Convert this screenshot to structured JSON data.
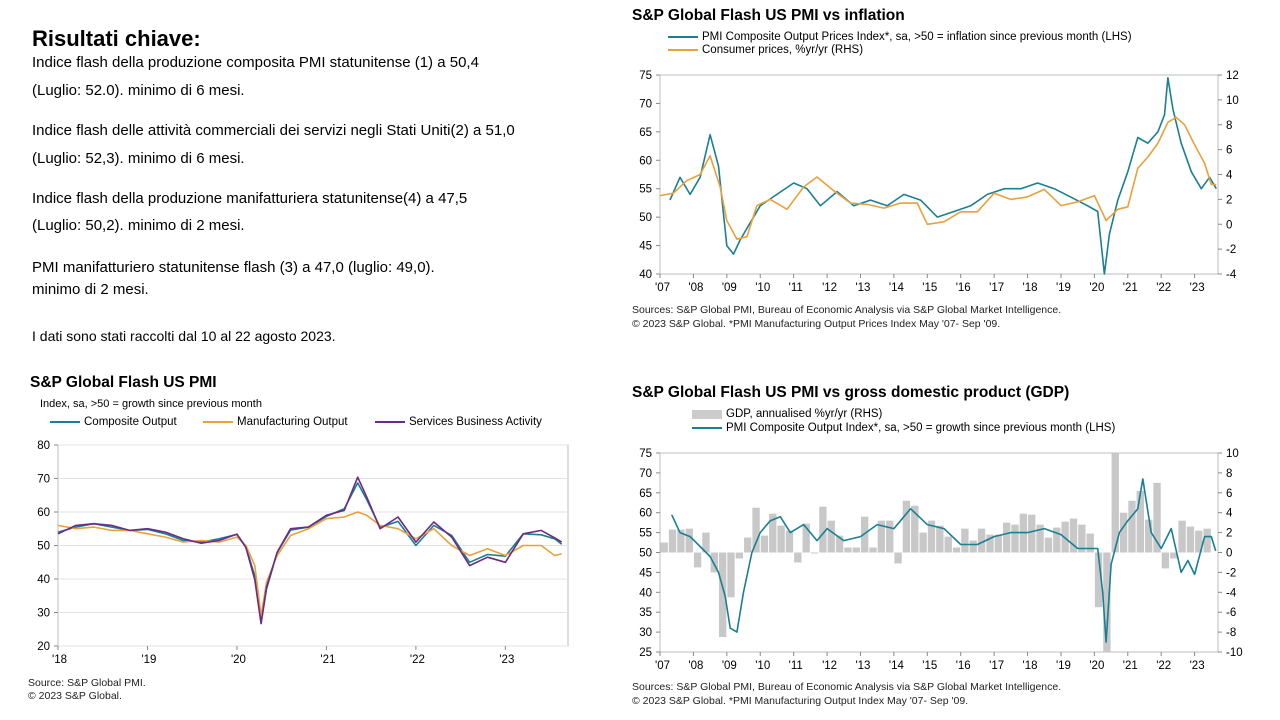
{
  "findings": {
    "title": "Risultati chiave:",
    "lines": [
      "Indice flash della produzione composita PMI statunitense (1) a 50,4",
      "(Luglio: 52.0). minimo di 6 mesi.",
      "Indice flash delle attività commerciali dei servizi negli Stati Uniti(2) a 51,0",
      "(Luglio: 52,3). minimo di 6 mesi.",
      "Indice flash della produzione manifatturiera statunitense(4) a 47,5",
      "(Luglio: 50,2). minimo di 2 mesi.",
      "PMI manifatturiero statunitense flash (3) a 47,0 (luglio: 49,0).",
      "minimo di 2 mesi.",
      "I dati sono stati raccolti dal 10 al 22 agosto 2023."
    ]
  },
  "colors": {
    "composite": "#1a7f95",
    "manufacturing": "#e9a13b",
    "services": "#6b2a86",
    "gdp": "#c8c8c8",
    "inflation": "#e9a13b",
    "prices": "#1a7f95"
  },
  "chart_data": [
    {
      "id": "pmi",
      "type": "line",
      "title": "S&P Global Flash US PMI",
      "ylabel": "Index, sa, >50 = growth  since previous month",
      "ylim": [
        20,
        80
      ],
      "yticks": [
        "20",
        "30",
        "40",
        "50",
        "60",
        "70",
        "80"
      ],
      "xlim": [
        2018.0,
        2023.7
      ],
      "xticks": [
        {
          "v": 2018,
          "l": "'18"
        },
        {
          "v": 2019,
          "l": "'19"
        },
        {
          "v": 2020,
          "l": "'20"
        },
        {
          "v": 2021,
          "l": "'21"
        },
        {
          "v": 2022,
          "l": "'22"
        },
        {
          "v": 2023,
          "l": "'23"
        }
      ],
      "series": [
        {
          "name": "Composite Output",
          "color_key": "composite",
          "x": [
            2018.0,
            2018.2,
            2018.4,
            2018.6,
            2018.8,
            2019.0,
            2019.2,
            2019.4,
            2019.6,
            2019.8,
            2020.0,
            2020.1,
            2020.2,
            2020.27,
            2020.33,
            2020.45,
            2020.6,
            2020.8,
            2021.0,
            2021.2,
            2021.35,
            2021.45,
            2021.6,
            2021.8,
            2022.0,
            2022.2,
            2022.4,
            2022.6,
            2022.8,
            2023.0,
            2023.2,
            2023.4,
            2023.55,
            2023.63
          ],
          "y": [
            54,
            55.5,
            56.5,
            55.5,
            54.5,
            54.8,
            53.5,
            51.5,
            51,
            52,
            53.3,
            49.6,
            40.9,
            27.0,
            37,
            47.9,
            54.6,
            55.5,
            58.7,
            61,
            68.7,
            63.7,
            55.4,
            57.2,
            50,
            56,
            53,
            45,
            47.3,
            46.8,
            53.5,
            53.2,
            52,
            50.4
          ]
        },
        {
          "name": "Manufacturing Output",
          "color_key": "manufacturing",
          "x": [
            2018.0,
            2018.2,
            2018.4,
            2018.6,
            2018.8,
            2019.0,
            2019.2,
            2019.4,
            2019.6,
            2019.8,
            2020.0,
            2020.1,
            2020.2,
            2020.27,
            2020.33,
            2020.45,
            2020.6,
            2020.8,
            2021.0,
            2021.2,
            2021.35,
            2021.45,
            2021.6,
            2021.8,
            2022.0,
            2022.2,
            2022.4,
            2022.6,
            2022.8,
            2023.0,
            2023.2,
            2023.4,
            2023.55,
            2023.63
          ],
          "y": [
            56,
            55,
            55.5,
            54.5,
            54.5,
            53.5,
            52.5,
            51,
            51.5,
            51,
            52.5,
            50,
            44,
            29,
            39,
            47,
            53,
            55,
            58,
            58.5,
            60,
            59,
            56,
            55,
            52,
            55,
            50,
            47,
            49,
            47,
            50,
            50,
            47,
            47.5
          ]
        },
        {
          "name": "Services Business Activity",
          "color_key": "services",
          "x": [
            2018.0,
            2018.2,
            2018.4,
            2018.6,
            2018.8,
            2019.0,
            2019.2,
            2019.4,
            2019.6,
            2019.8,
            2020.0,
            2020.1,
            2020.2,
            2020.27,
            2020.33,
            2020.45,
            2020.6,
            2020.8,
            2021.0,
            2021.2,
            2021.35,
            2021.45,
            2021.6,
            2021.8,
            2022.0,
            2022.2,
            2022.4,
            2022.6,
            2022.8,
            2023.0,
            2023.2,
            2023.4,
            2023.55,
            2023.63
          ],
          "y": [
            53.5,
            56,
            56.5,
            56,
            54.5,
            55,
            54,
            52,
            50.7,
            51.5,
            53.4,
            49.4,
            39.8,
            26.7,
            37.5,
            48,
            55,
            55.5,
            59,
            60.5,
            70.4,
            64.5,
            55,
            58.5,
            51,
            57,
            52.5,
            44,
            46.5,
            45,
            53.5,
            54.5,
            52.3,
            51
          ]
        }
      ],
      "source": [
        "Source: S&P Global PMI.",
        "© 2023 S&P Global."
      ]
    },
    {
      "id": "inflation",
      "type": "line",
      "title": "S&P Global Flash US PMI vs inflation",
      "ylim": [
        40,
        75
      ],
      "yticks": [
        "40",
        "45",
        "50",
        "55",
        "60",
        "65",
        "70",
        "75"
      ],
      "y2lim": [
        -4,
        12
      ],
      "y2ticks": [
        "-4",
        "-2",
        "0",
        "2",
        "4",
        "6",
        "8",
        "10",
        "12"
      ],
      "xlim": [
        2007.0,
        2023.7
      ],
      "xticks": [
        {
          "v": 2007,
          "l": "'07"
        },
        {
          "v": 2008,
          "l": "'08"
        },
        {
          "v": 2009,
          "l": "'09"
        },
        {
          "v": 2010,
          "l": "'10"
        },
        {
          "v": 2011,
          "l": "'11"
        },
        {
          "v": 2012,
          "l": "'12"
        },
        {
          "v": 2013,
          "l": "'13"
        },
        {
          "v": 2014,
          "l": "'14"
        },
        {
          "v": 2015,
          "l": "'15"
        },
        {
          "v": 2016,
          "l": "'16"
        },
        {
          "v": 2017,
          "l": "'17"
        },
        {
          "v": 2018,
          "l": "'18"
        },
        {
          "v": 2019,
          "l": "'19"
        },
        {
          "v": 2020,
          "l": "'20"
        },
        {
          "v": 2021,
          "l": "'21"
        },
        {
          "v": 2022,
          "l": "'22"
        },
        {
          "v": 2023,
          "l": "'23"
        }
      ],
      "series": [
        {
          "name": "PMI Composite Output Prices Index*, sa, >50 = inflation since previous month (LHS)",
          "color_key": "prices",
          "axis": "left",
          "x": [
            2007.3,
            2007.6,
            2007.9,
            2008.2,
            2008.5,
            2008.75,
            2009.0,
            2009.2,
            2009.4,
            2009.7,
            2010.0,
            2010.5,
            2011.0,
            2011.4,
            2011.8,
            2012.3,
            2012.8,
            2013.3,
            2013.8,
            2014.3,
            2014.8,
            2015.3,
            2015.8,
            2016.3,
            2016.8,
            2017.3,
            2017.8,
            2018.3,
            2018.8,
            2019.3,
            2019.8,
            2020.1,
            2020.3,
            2020.45,
            2020.7,
            2021.0,
            2021.3,
            2021.6,
            2021.9,
            2022.1,
            2022.2,
            2022.35,
            2022.6,
            2022.9,
            2023.2,
            2023.45,
            2023.65
          ],
          "y": [
            53,
            57,
            54,
            57,
            64.5,
            59,
            45,
            43.5,
            46,
            49,
            52,
            54,
            56,
            55,
            52,
            54.5,
            52,
            53,
            52,
            54,
            53,
            50,
            51,
            52,
            54,
            55,
            55,
            56,
            55,
            53.5,
            52,
            51,
            40,
            47,
            53,
            58,
            64,
            63,
            65,
            68,
            74.5,
            69,
            63,
            58,
            55,
            57,
            55
          ]
        },
        {
          "name": "Consumer prices, %yr/yr (RHS)",
          "color_key": "inflation",
          "axis": "right",
          "x": [
            2007.0,
            2007.4,
            2007.8,
            2008.2,
            2008.5,
            2008.8,
            2009.0,
            2009.3,
            2009.6,
            2009.9,
            2010.3,
            2010.8,
            2011.3,
            2011.7,
            2012.2,
            2012.7,
            2013.2,
            2013.7,
            2014.2,
            2014.7,
            2015.0,
            2015.5,
            2016.0,
            2016.5,
            2017.0,
            2017.5,
            2018.0,
            2018.5,
            2019.0,
            2019.5,
            2020.0,
            2020.35,
            2020.7,
            2021.0,
            2021.3,
            2021.6,
            2021.9,
            2022.2,
            2022.45,
            2022.7,
            2023.0,
            2023.3,
            2023.5,
            2023.65
          ],
          "y": [
            2.3,
            2.5,
            3.5,
            4,
            5.5,
            3,
            0.3,
            -1.2,
            -1,
            1.5,
            2,
            1.2,
            3,
            3.8,
            2.7,
            1.7,
            1.6,
            1.3,
            1.7,
            1.7,
            0,
            0.2,
            1,
            1,
            2.5,
            2,
            2.2,
            2.8,
            1.5,
            1.8,
            2.3,
            0.3,
            1.2,
            1.4,
            4.5,
            5.4,
            6.5,
            8.2,
            8.6,
            8,
            6.4,
            4.9,
            3.2,
            3.2
          ]
        }
      ],
      "source": [
        "Sources: S&P Global PMI, Bureau of Economic Analysis via S&P Global Market Intelligence.",
        "© 2023 S&P Global. *PMI Manufacturing Output Prices Index May '07- Sep '09."
      ]
    },
    {
      "id": "gdp",
      "type": "bar+line",
      "title": "S&P Global Flash US PMI vs gross domestic product (GDP)",
      "ylim": [
        25,
        75
      ],
      "yticks": [
        "25",
        "30",
        "35",
        "40",
        "45",
        "50",
        "55",
        "60",
        "65",
        "70",
        "75"
      ],
      "y2lim": [
        -10,
        10
      ],
      "y2ticks": [
        "-10",
        "-8",
        "-6",
        "-4",
        "-2",
        "0",
        "2",
        "4",
        "6",
        "8",
        "10"
      ],
      "xlim": [
        2007.0,
        2023.7
      ],
      "xticks": [
        {
          "v": 2007,
          "l": "'07"
        },
        {
          "v": 2008,
          "l": "'08"
        },
        {
          "v": 2009,
          "l": "'09"
        },
        {
          "v": 2010,
          "l": "'10"
        },
        {
          "v": 2011,
          "l": "'11"
        },
        {
          "v": 2012,
          "l": "'12"
        },
        {
          "v": 2013,
          "l": "'13"
        },
        {
          "v": 2014,
          "l": "'14"
        },
        {
          "v": 2015,
          "l": "'15"
        },
        {
          "v": 2016,
          "l": "'16"
        },
        {
          "v": 2017,
          "l": "'17"
        },
        {
          "v": 2018,
          "l": "'18"
        },
        {
          "v": 2019,
          "l": "'19"
        },
        {
          "v": 2020,
          "l": "'20"
        },
        {
          "v": 2021,
          "l": "'21"
        },
        {
          "v": 2022,
          "l": "'22"
        },
        {
          "v": 2023,
          "l": "'23"
        }
      ],
      "bars": {
        "name": "GDP, annualised %yr/yr (RHS)",
        "color_key": "gdp",
        "x": [
          2007.125,
          2007.375,
          2007.625,
          2007.875,
          2008.125,
          2008.375,
          2008.625,
          2008.875,
          2009.125,
          2009.375,
          2009.625,
          2009.875,
          2010.125,
          2010.375,
          2010.625,
          2010.875,
          2011.125,
          2011.375,
          2011.625,
          2011.875,
          2012.125,
          2012.375,
          2012.625,
          2012.875,
          2013.125,
          2013.375,
          2013.625,
          2013.875,
          2014.125,
          2014.375,
          2014.625,
          2014.875,
          2015.125,
          2015.375,
          2015.625,
          2015.875,
          2016.125,
          2016.375,
          2016.625,
          2016.875,
          2017.125,
          2017.375,
          2017.625,
          2017.875,
          2018.125,
          2018.375,
          2018.625,
          2018.875,
          2019.125,
          2019.375,
          2019.625,
          2019.875,
          2020.125,
          2020.375,
          2020.625,
          2020.875,
          2021.125,
          2021.375,
          2021.625,
          2021.875,
          2022.125,
          2022.375,
          2022.625,
          2022.875,
          2023.125,
          2023.375
        ],
        "values": [
          1,
          2.3,
          2.3,
          2.4,
          -1.5,
          2,
          -2,
          -8.5,
          -4.5,
          -0.6,
          1.5,
          4.5,
          1.7,
          3.9,
          2.7,
          2.2,
          -1,
          2.9,
          -0.1,
          4.6,
          3.2,
          1.7,
          0.5,
          0.5,
          3.6,
          0.5,
          3.2,
          3.2,
          -1.1,
          5.2,
          4.7,
          2,
          3.2,
          2.7,
          1.6,
          0.5,
          2.4,
          1.2,
          2.4,
          1.8,
          1.8,
          3,
          2.8,
          3.9,
          3.8,
          2.8,
          1.5,
          2.5,
          3.1,
          3.4,
          2.8,
          1.9,
          -5.5,
          -29,
          35,
          4,
          5.2,
          6.2,
          3.3,
          7,
          -1.6,
          -0.6,
          3.2,
          2.6,
          2.2,
          2.4
        ]
      },
      "series": [
        {
          "name": "PMI Composite Output Index*, sa, >50 = growth since previous month (LHS)",
          "color_key": "composite",
          "x": [
            2007.35,
            2007.6,
            2007.9,
            2008.2,
            2008.5,
            2008.75,
            2008.95,
            2009.1,
            2009.3,
            2009.5,
            2009.75,
            2010.0,
            2010.3,
            2010.6,
            2010.9,
            2011.3,
            2011.7,
            2012.0,
            2012.5,
            2013.0,
            2013.5,
            2014.0,
            2014.5,
            2015.0,
            2015.5,
            2016.0,
            2016.5,
            2017.0,
            2017.5,
            2018.0,
            2018.5,
            2019.0,
            2019.5,
            2019.9,
            2020.1,
            2020.25,
            2020.35,
            2020.5,
            2020.75,
            2021.0,
            2021.3,
            2021.45,
            2021.7,
            2022.0,
            2022.3,
            2022.6,
            2022.8,
            2023.0,
            2023.3,
            2023.5,
            2023.63
          ],
          "y": [
            59.5,
            55,
            54,
            51.5,
            49,
            45,
            39,
            31,
            30,
            40,
            50,
            55,
            58,
            59,
            55,
            57,
            53,
            56,
            53,
            54,
            57,
            56,
            61,
            57,
            56,
            52,
            52,
            54,
            55,
            55,
            56,
            54.5,
            51,
            51,
            51,
            40,
            27.5,
            47,
            55,
            58,
            61,
            68.5,
            55,
            51,
            56,
            45,
            48,
            44.5,
            54,
            54,
            50.4
          ]
        }
      ],
      "source": [
        "Sources: S&P Global PMI, Bureau of Economic Analysis via S&P Global Market Intelligence.",
        "© 2023 S&P Global. *PMI Manufacturing Output Index May '07- Sep '09."
      ]
    }
  ]
}
